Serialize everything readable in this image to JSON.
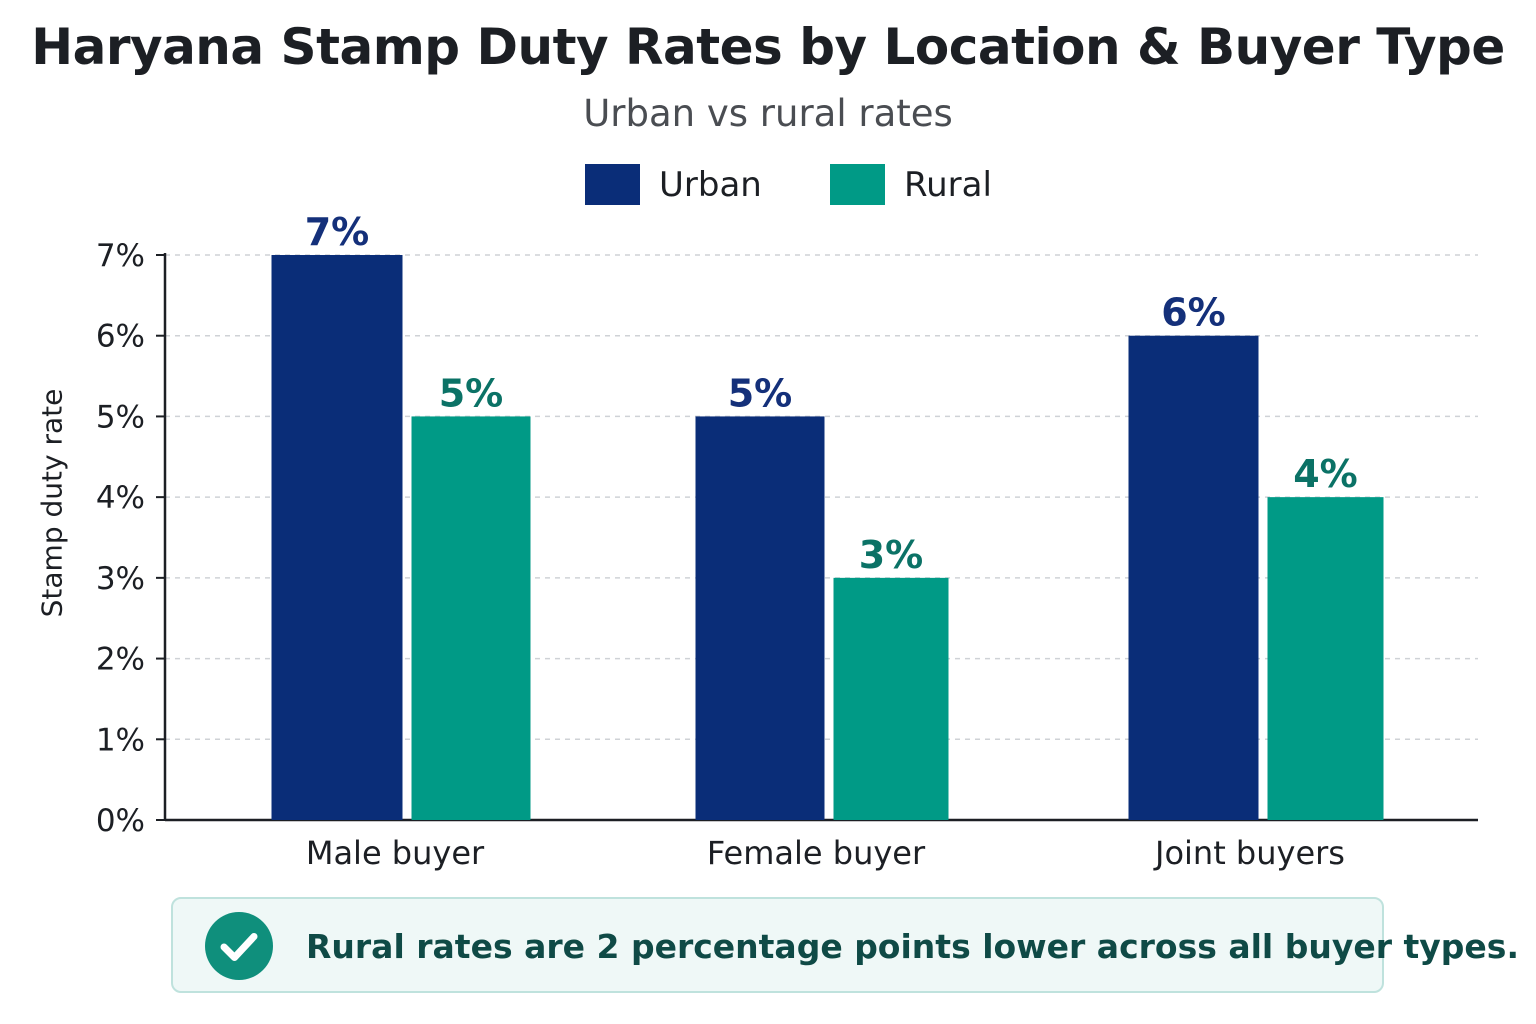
{
  "colors": {
    "urban": "#0a2d78",
    "rural": "#009a86",
    "urban_label": "#14307a",
    "rural_label": "#0b7266",
    "grid": "#cfd2d6",
    "axis": "#1c1f24",
    "callout_icon": "#0f8f7c"
  },
  "legend": {
    "items": [
      {
        "label": "Urban",
        "color": "#0a2d78"
      },
      {
        "label": "Rural",
        "color": "#009a86"
      }
    ]
  },
  "callout": {
    "icon": "check-circle-icon",
    "text": "Rural rates are 2 percentage points lower across all buyer types."
  },
  "chart_data": {
    "type": "bar",
    "title": "Haryana Stamp Duty Rates by Location & Buyer Type",
    "subtitle": "Urban vs rural rates",
    "xlabel": "",
    "ylabel": "Stamp duty rate",
    "categories": [
      "Male buyer",
      "Female buyer",
      "Joint buyers"
    ],
    "series": [
      {
        "name": "Urban",
        "values": [
          7,
          5,
          6
        ],
        "data_labels": [
          "7%",
          "5%",
          "6%"
        ]
      },
      {
        "name": "Rural",
        "values": [
          5,
          3,
          4
        ],
        "data_labels": [
          "5%",
          "3%",
          "4%"
        ]
      }
    ],
    "ylim": [
      0,
      7
    ],
    "yticks": [
      0,
      1,
      2,
      3,
      4,
      5,
      6,
      7
    ],
    "ytick_labels": [
      "0%",
      "1%",
      "2%",
      "3%",
      "4%",
      "5%",
      "6%",
      "7%"
    ],
    "grid": true,
    "grid_style": "dashed",
    "legend_position": "top-center"
  }
}
